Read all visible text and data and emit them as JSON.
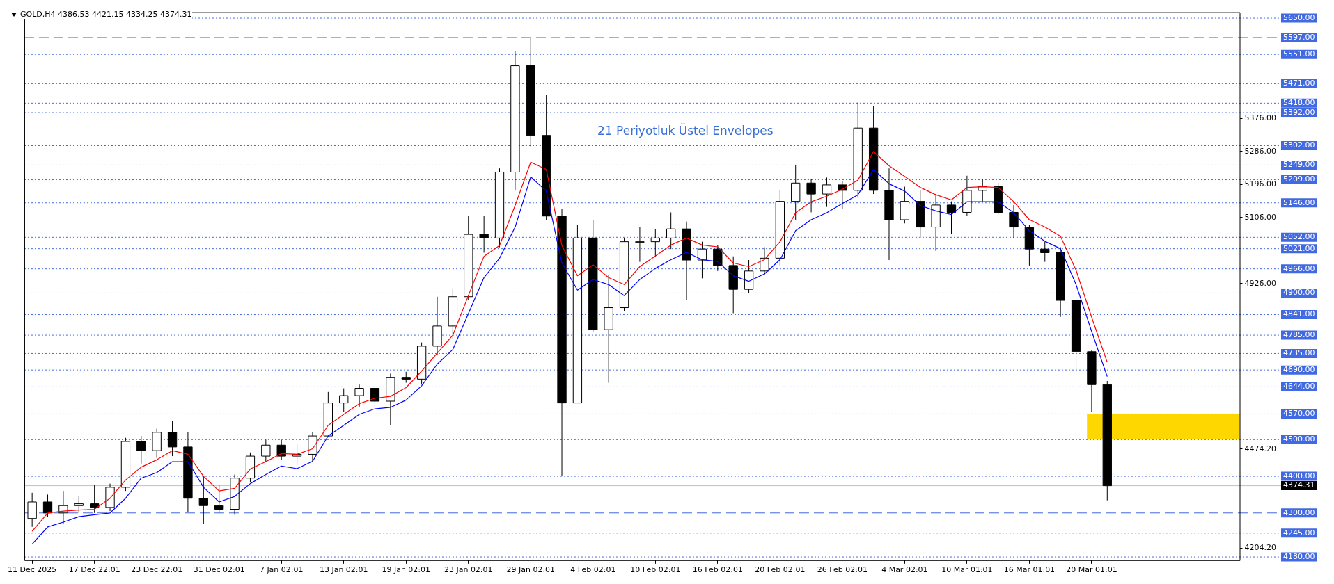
{
  "chart_data": {
    "type": "candlestick",
    "title": "GOLD,H4  4386.53 4421.15 4334.25 4374.31",
    "categories": [
      "11 Dec 2025",
      null,
      null,
      null,
      "17 Dec 22:01",
      null,
      null,
      null,
      "23 Dec 22:01",
      null,
      null,
      null,
      "31 Dec 02:01",
      null,
      null,
      null,
      "7 Jan 02:01",
      null,
      null,
      null,
      "13 Jan 02:01",
      null,
      null,
      null,
      "19 Jan 02:01",
      null,
      null,
      null,
      "23 Jan 02:01",
      null,
      null,
      null,
      "29 Jan 02:01",
      null,
      null,
      null,
      "4 Feb 02:01",
      null,
      null,
      null,
      "10 Feb 02:01",
      null,
      null,
      null,
      "16 Feb 02:01",
      null,
      null,
      null,
      "20 Feb 02:01",
      null,
      null,
      null,
      "26 Feb 02:01",
      null,
      null,
      null,
      "4 Mar 02:01",
      null,
      null,
      null,
      "10 Mar 01:01",
      null,
      null,
      null,
      "16 Mar 01:01",
      null,
      null,
      null,
      "20 Mar 01:01",
      null,
      null,
      null,
      null,
      null,
      null,
      null,
      null,
      null
    ],
    "ohlc": [
      [
        4285,
        4355,
        4262,
        4330
      ],
      [
        4330,
        4350,
        4290,
        4300
      ],
      [
        4300,
        4360,
        4270,
        4320
      ],
      [
        4320,
        4345,
        4300,
        4325
      ],
      [
        4325,
        4377,
        4300,
        4315
      ],
      [
        4315,
        4380,
        4305,
        4370
      ],
      [
        4370,
        4505,
        4360,
        4495
      ],
      [
        4495,
        4510,
        4435,
        4470
      ],
      [
        4470,
        4530,
        4450,
        4520
      ],
      [
        4520,
        4550,
        4455,
        4480
      ],
      [
        4480,
        4520,
        4303,
        4340
      ],
      [
        4340,
        4400,
        4270,
        4320
      ],
      [
        4320,
        4375,
        4300,
        4310
      ],
      [
        4310,
        4405,
        4295,
        4395
      ],
      [
        4395,
        4465,
        4385,
        4455
      ],
      [
        4455,
        4500,
        4440,
        4485
      ],
      [
        4485,
        4500,
        4445,
        4455
      ],
      [
        4455,
        4490,
        4430,
        4460
      ],
      [
        4460,
        4520,
        4440,
        4510
      ],
      [
        4510,
        4630,
        4510,
        4600
      ],
      [
        4600,
        4640,
        4575,
        4620
      ],
      [
        4620,
        4650,
        4590,
        4640
      ],
      [
        4640,
        4648,
        4590,
        4605
      ],
      [
        4605,
        4680,
        4540,
        4670
      ],
      [
        4670,
        4685,
        4655,
        4665
      ],
      [
        4665,
        4765,
        4650,
        4755
      ],
      [
        4755,
        4890,
        4730,
        4810
      ],
      [
        4810,
        4910,
        4775,
        4890
      ],
      [
        4890,
        5110,
        4880,
        5060
      ],
      [
        5060,
        5110,
        5010,
        5050
      ],
      [
        5050,
        5240,
        5025,
        5230
      ],
      [
        5230,
        5560,
        5180,
        5520
      ],
      [
        5520,
        5597,
        5300,
        5330
      ],
      [
        5330,
        5440,
        5100,
        5110
      ],
      [
        5110,
        5130,
        4402,
        4600
      ],
      [
        4600,
        5085,
        4600,
        5050
      ],
      [
        5050,
        5100,
        4795,
        4800
      ],
      [
        4800,
        4950,
        4655,
        4860
      ],
      [
        4860,
        5050,
        4850,
        5040
      ],
      [
        5040,
        5080,
        4985,
        5040
      ],
      [
        5040,
        5075,
        5000,
        5050
      ],
      [
        5050,
        5120,
        5020,
        5075
      ],
      [
        5075,
        5095,
        4880,
        4990
      ],
      [
        4990,
        5040,
        4940,
        5020
      ],
      [
        5020,
        5030,
        4960,
        4975
      ],
      [
        4975,
        5000,
        4845,
        4910
      ],
      [
        4910,
        4990,
        4900,
        4960
      ],
      [
        4960,
        5025,
        4950,
        4995
      ],
      [
        4995,
        5180,
        4975,
        5150
      ],
      [
        5150,
        5250,
        5100,
        5200
      ],
      [
        5200,
        5210,
        5120,
        5170
      ],
      [
        5170,
        5215,
        5135,
        5195
      ],
      [
        5195,
        5205,
        5130,
        5180
      ],
      [
        5180,
        5420,
        5160,
        5350
      ],
      [
        5350,
        5410,
        5170,
        5180
      ],
      [
        5180,
        5240,
        4990,
        5100
      ],
      [
        5100,
        5190,
        5090,
        5150
      ],
      [
        5150,
        5180,
        5050,
        5080
      ],
      [
        5080,
        5170,
        5015,
        5140
      ],
      [
        5140,
        5150,
        5060,
        5120
      ],
      [
        5120,
        5220,
        5110,
        5180
      ],
      [
        5180,
        5210,
        5150,
        5190
      ],
      [
        5190,
        5200,
        5115,
        5120
      ],
      [
        5120,
        5140,
        5050,
        5080
      ],
      [
        5080,
        5085,
        4975,
        5020
      ],
      [
        5020,
        5040,
        4985,
        5010
      ],
      [
        5010,
        5025,
        4835,
        4880
      ],
      [
        4880,
        4885,
        4690,
        4740
      ],
      [
        4740,
        4745,
        4575,
        4650
      ],
      [
        4650,
        4660,
        4334.25,
        4374.31
      ],
      null,
      null,
      null,
      null,
      null,
      null,
      null,
      null
    ],
    "series": [
      {
        "type": "line",
        "color": "#ff0000",
        "values": [
          4250,
          4300,
          4305,
          4308,
          4310,
          4340,
          4390,
          4425,
          4445,
          4470,
          4460,
          4400,
          4360,
          4367,
          4420,
          4440,
          4462,
          4460,
          4475,
          4539,
          4569,
          4598,
          4613,
          4618,
          4642,
          4687,
          4736,
          4785,
          4893,
          5000,
          5030,
          5139,
          5257,
          5237,
          5030,
          4947,
          4977,
          4942,
          4923,
          4972,
          5001,
          5031,
          5050,
          5031,
          5026,
          4982,
          4972,
          4991,
          5040,
          5119,
          5149,
          5164,
          5183,
          5208,
          5286,
          5247,
          5218,
          5188,
          5168,
          5154,
          5188,
          5190,
          5188,
          5149,
          5100,
          5080,
          5055,
          4962,
          4834,
          4711,
          null,
          null,
          null,
          null,
          null,
          null,
          null,
          null
        ]
      },
      {
        "type": "line",
        "color": "#0000ff",
        "values": [
          4215,
          4262,
          4275,
          4290,
          4295,
          4300,
          4340,
          4395,
          4410,
          4440,
          4440,
          4370,
          4330,
          4345,
          4380,
          4405,
          4428,
          4421,
          4441,
          4510,
          4539,
          4569,
          4584,
          4588,
          4608,
          4647,
          4706,
          4746,
          4844,
          4942,
          4995,
          5080,
          5217,
          5178,
          4982,
          4908,
          4937,
          4923,
          4893,
          4937,
          4967,
          4991,
          5011,
          4991,
          4986,
          4947,
          4932,
          4952,
          4991,
          5070,
          5100,
          5119,
          5144,
          5168,
          5237,
          5198,
          5178,
          5139,
          5124,
          5114,
          5149,
          5149,
          5149,
          5119,
          5070,
          5041,
          5021,
          4923,
          4795,
          4672,
          null,
          null,
          null,
          null,
          null,
          null,
          null,
          null
        ]
      }
    ],
    "ylim": [
      4171,
      5666
    ],
    "yticks": [
      {
        "value": 4204.2,
        "label": "4204.20"
      },
      {
        "value": 4474.2,
        "label": "4474.20"
      },
      {
        "value": 4926,
        "label": "4926.00"
      },
      {
        "value": 5106,
        "label": "5106.00"
      },
      {
        "value": 5196,
        "label": "5196.00"
      },
      {
        "value": 5286,
        "label": "5286.00"
      },
      {
        "value": 5376,
        "label": "5376.00"
      }
    ],
    "ref_lines": [
      {
        "axis": "y",
        "value": 5650,
        "label": "5650.00",
        "color": "#4169e1",
        "line_style": "dotted"
      },
      {
        "axis": "y",
        "value": 5597,
        "label": "5597.00",
        "color": "#4169e1",
        "line_style": "dashed"
      },
      {
        "axis": "y",
        "value": 5551,
        "label": "5551.00",
        "color": "#4169e1",
        "line_style": "dotted"
      },
      {
        "axis": "y",
        "value": 5471,
        "label": "5471.00",
        "color": "#4169e1",
        "line_style": "dotted"
      },
      {
        "axis": "y",
        "value": 5418,
        "label": "5418.00",
        "color": "#4169e1",
        "line_style": "dotted"
      },
      {
        "axis": "y",
        "value": 5392,
        "label": "5392.00",
        "color": "#4169e1",
        "line_style": "dotted"
      },
      {
        "axis": "y",
        "value": 5302,
        "label": "5302.00",
        "color": "#4169e1",
        "line_style": "dotted"
      },
      {
        "axis": "y",
        "value": 5249,
        "label": "5249.00",
        "color": "#4169e1",
        "line_style": "dotted"
      },
      {
        "axis": "y",
        "value": 5209,
        "label": "5209.00",
        "color": "#4169e1",
        "line_style": "dotted"
      },
      {
        "axis": "y",
        "value": 5146,
        "label": "5146.00",
        "color": "#4169e1",
        "line_style": "dotted"
      },
      {
        "axis": "y",
        "value": 5052,
        "label": "5052.00",
        "color": "#4169e1",
        "line_style": "dotted"
      },
      {
        "axis": "y",
        "value": 5021,
        "label": "5021.00",
        "color": "#4169e1",
        "line_style": "dotted"
      },
      {
        "axis": "y",
        "value": 4966,
        "label": "4966.00",
        "color": "#4169e1",
        "line_style": "dotted"
      },
      {
        "axis": "y",
        "value": 4900,
        "label": "4900.00",
        "color": "#4169e1",
        "line_style": "dotted"
      },
      {
        "axis": "y",
        "value": 4841,
        "label": "4841.00",
        "color": "#4169e1",
        "line_style": "dotted"
      },
      {
        "axis": "y",
        "value": 4785,
        "label": "4785.00",
        "color": "#4169e1",
        "line_style": "dotted"
      },
      {
        "axis": "y",
        "value": 4735,
        "label": "4735.00",
        "color": "#4169e1",
        "line_style": "dotted"
      },
      {
        "axis": "y",
        "value": 4690,
        "label": "4690.00",
        "color": "#4169e1",
        "line_style": "dotted"
      },
      {
        "axis": "y",
        "value": 4644,
        "label": "4644.00",
        "color": "#4169e1",
        "line_style": "dotted"
      },
      {
        "axis": "y",
        "value": 4570,
        "label": "4570.00",
        "color": "#4169e1",
        "line_style": "dotted"
      },
      {
        "axis": "y",
        "value": 4500,
        "label": "4500.00",
        "color": "#4169e1",
        "line_style": "dotted"
      },
      {
        "axis": "y",
        "value": 4400,
        "label": "4400.00",
        "color": "#4169e1",
        "line_style": "dotted"
      },
      {
        "axis": "y",
        "value": 4374.31,
        "label": "4374.31",
        "color": "#c0c0c0",
        "line_style": "solid"
      },
      {
        "axis": "y",
        "value": 4300,
        "label": "4300.00",
        "color": "#4169e1",
        "line_style": "dashed"
      },
      {
        "axis": "y",
        "value": 4245,
        "label": "4245.00",
        "color": "#4169e1",
        "line_style": "dotted"
      },
      {
        "axis": "y",
        "value": 4180,
        "label": "4180.00",
        "color": "#4169e1",
        "line_style": "dotted"
      }
    ],
    "bands": [
      {
        "axis": "y",
        "from": 4500,
        "to": 4570,
        "color": "#ffd700"
      }
    ],
    "annotations": [
      "21 Periyotluk Üstel Envelopes"
    ]
  }
}
